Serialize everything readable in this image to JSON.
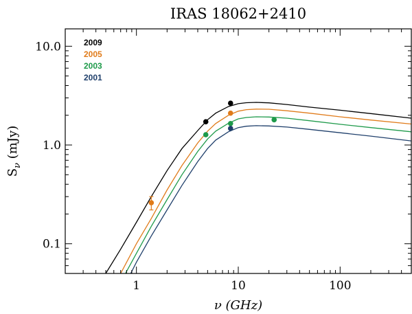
{
  "chart_data": {
    "type": "line",
    "title": "IRAS 18062+2410",
    "xlabel": "ν  (GHz)",
    "ylabel": "S",
    "ylabel_sub": "ν",
    "ylabel_unit": " (mJy)",
    "xscale": "log",
    "yscale": "log",
    "xlim": [
      0.2,
      500
    ],
    "ylim": [
      0.05,
      15
    ],
    "x_ticks": [
      {
        "value": 1,
        "label": "1"
      },
      {
        "value": 10,
        "label": "10"
      },
      {
        "value": 100,
        "label": "100"
      }
    ],
    "y_ticks": [
      {
        "value": 0.1,
        "label": "0.1"
      },
      {
        "value": 1,
        "label": "1.0"
      },
      {
        "value": 10,
        "label": "10.0"
      }
    ],
    "legend_position": "top-left",
    "series": [
      {
        "name": "2009",
        "color": "#000000",
        "x": [
          0.5,
          0.7,
          1,
          1.4,
          2,
          2.8,
          4,
          5,
          6,
          8,
          10,
          12,
          15,
          20,
          30,
          50,
          100,
          200,
          500
        ],
        "y": [
          0.05,
          0.088,
          0.165,
          0.3,
          0.55,
          0.92,
          1.4,
          1.8,
          2.1,
          2.45,
          2.62,
          2.68,
          2.7,
          2.67,
          2.57,
          2.42,
          2.25,
          2.08,
          1.87
        ],
        "points": [
          {
            "x": 4.8,
            "y": 1.72,
            "err": 0
          },
          {
            "x": 8.4,
            "y": 2.65,
            "err": 0
          }
        ]
      },
      {
        "name": "2005",
        "color": "#E07B1A",
        "x": [
          0.7,
          1,
          1.4,
          2,
          2.8,
          4,
          5,
          6,
          8,
          10,
          12,
          15,
          20,
          30,
          50,
          100,
          200,
          500
        ],
        "y": [
          0.05,
          0.1,
          0.18,
          0.35,
          0.62,
          1.05,
          1.38,
          1.65,
          2.0,
          2.2,
          2.28,
          2.31,
          2.3,
          2.22,
          2.1,
          1.93,
          1.79,
          1.63
        ],
        "points": [
          {
            "x": 1.4,
            "y": 0.26,
            "err": 0.04
          },
          {
            "x": 8.4,
            "y": 2.1,
            "err": 0
          }
        ]
      },
      {
        "name": "2003",
        "color": "#1E9A4A",
        "x": [
          0.78,
          1,
          1.4,
          2,
          2.8,
          4,
          5,
          6,
          8,
          10,
          12,
          15,
          20,
          30,
          50,
          100,
          200,
          500
        ],
        "y": [
          0.05,
          0.08,
          0.15,
          0.28,
          0.5,
          0.86,
          1.15,
          1.38,
          1.66,
          1.84,
          1.9,
          1.93,
          1.92,
          1.87,
          1.76,
          1.62,
          1.5,
          1.36
        ],
        "points": [
          {
            "x": 4.8,
            "y": 1.27,
            "err": 0
          },
          {
            "x": 8.4,
            "y": 1.65,
            "err": 0
          },
          {
            "x": 22.5,
            "y": 1.8,
            "err": 0
          }
        ]
      },
      {
        "name": "2001",
        "color": "#1F3F6B",
        "x": [
          0.88,
          1,
          1.4,
          2,
          2.8,
          4,
          5,
          6,
          8,
          10,
          12,
          15,
          20,
          30,
          50,
          100,
          200,
          500
        ],
        "y": [
          0.05,
          0.065,
          0.12,
          0.22,
          0.39,
          0.68,
          0.92,
          1.12,
          1.36,
          1.5,
          1.55,
          1.57,
          1.56,
          1.52,
          1.44,
          1.33,
          1.23,
          1.1
        ],
        "points": [
          {
            "x": 8.4,
            "y": 1.47,
            "err": 0
          }
        ]
      }
    ]
  }
}
